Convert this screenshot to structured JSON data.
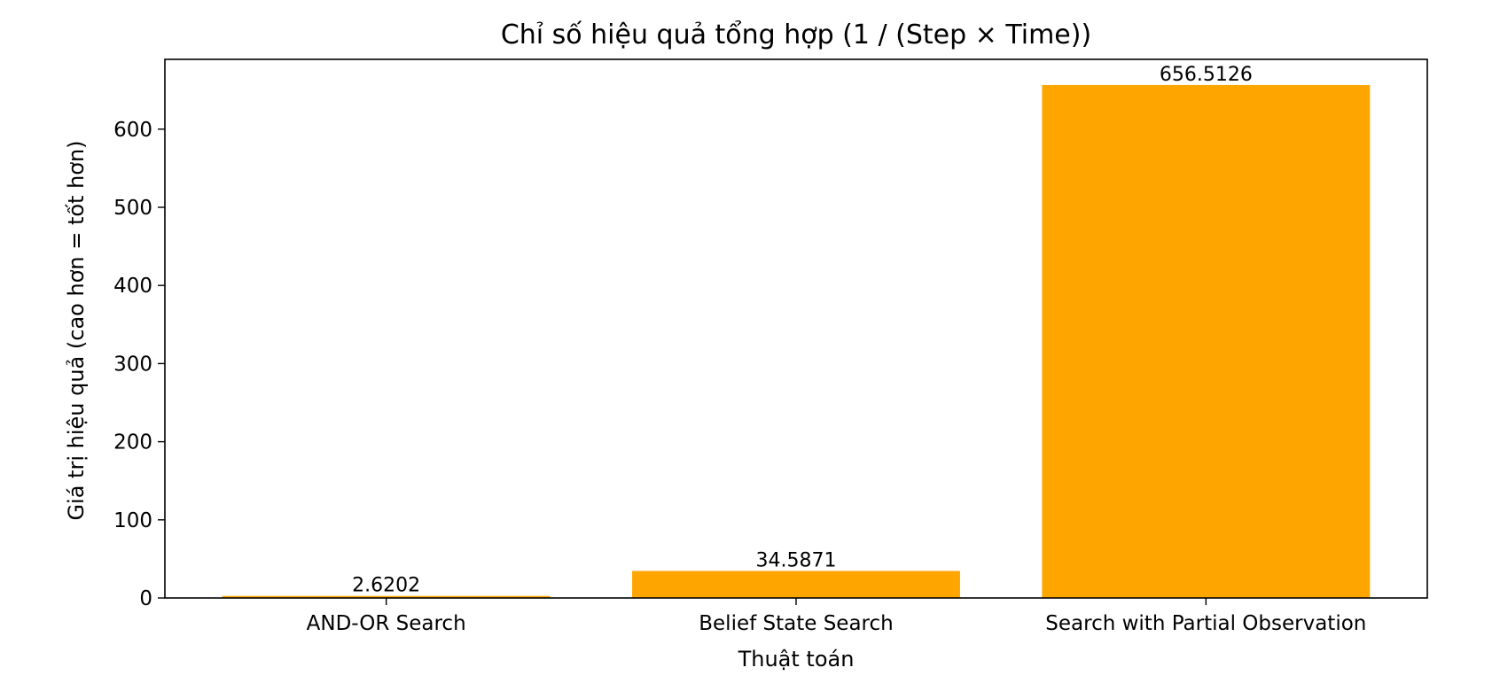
{
  "chart_data": {
    "type": "bar",
    "title": "Chỉ số hiệu quả tổng hợp (1 / (Step × Time))",
    "xlabel": "Thuật toán",
    "ylabel": "Giá trị hiệu quả (cao hơn = tốt hơn)",
    "categories": [
      "AND-OR Search",
      "Belief State Search",
      "Search with Partial Observation"
    ],
    "values": [
      2.6202,
      34.5871,
      656.5126
    ],
    "data_labels": [
      "2.6202",
      "34.5871",
      "656.5126"
    ],
    "ylim": [
      0,
      689.34
    ],
    "yticks": [
      0,
      100,
      200,
      300,
      400,
      500,
      600
    ],
    "grid": false,
    "bar_color": "#FFA500"
  }
}
